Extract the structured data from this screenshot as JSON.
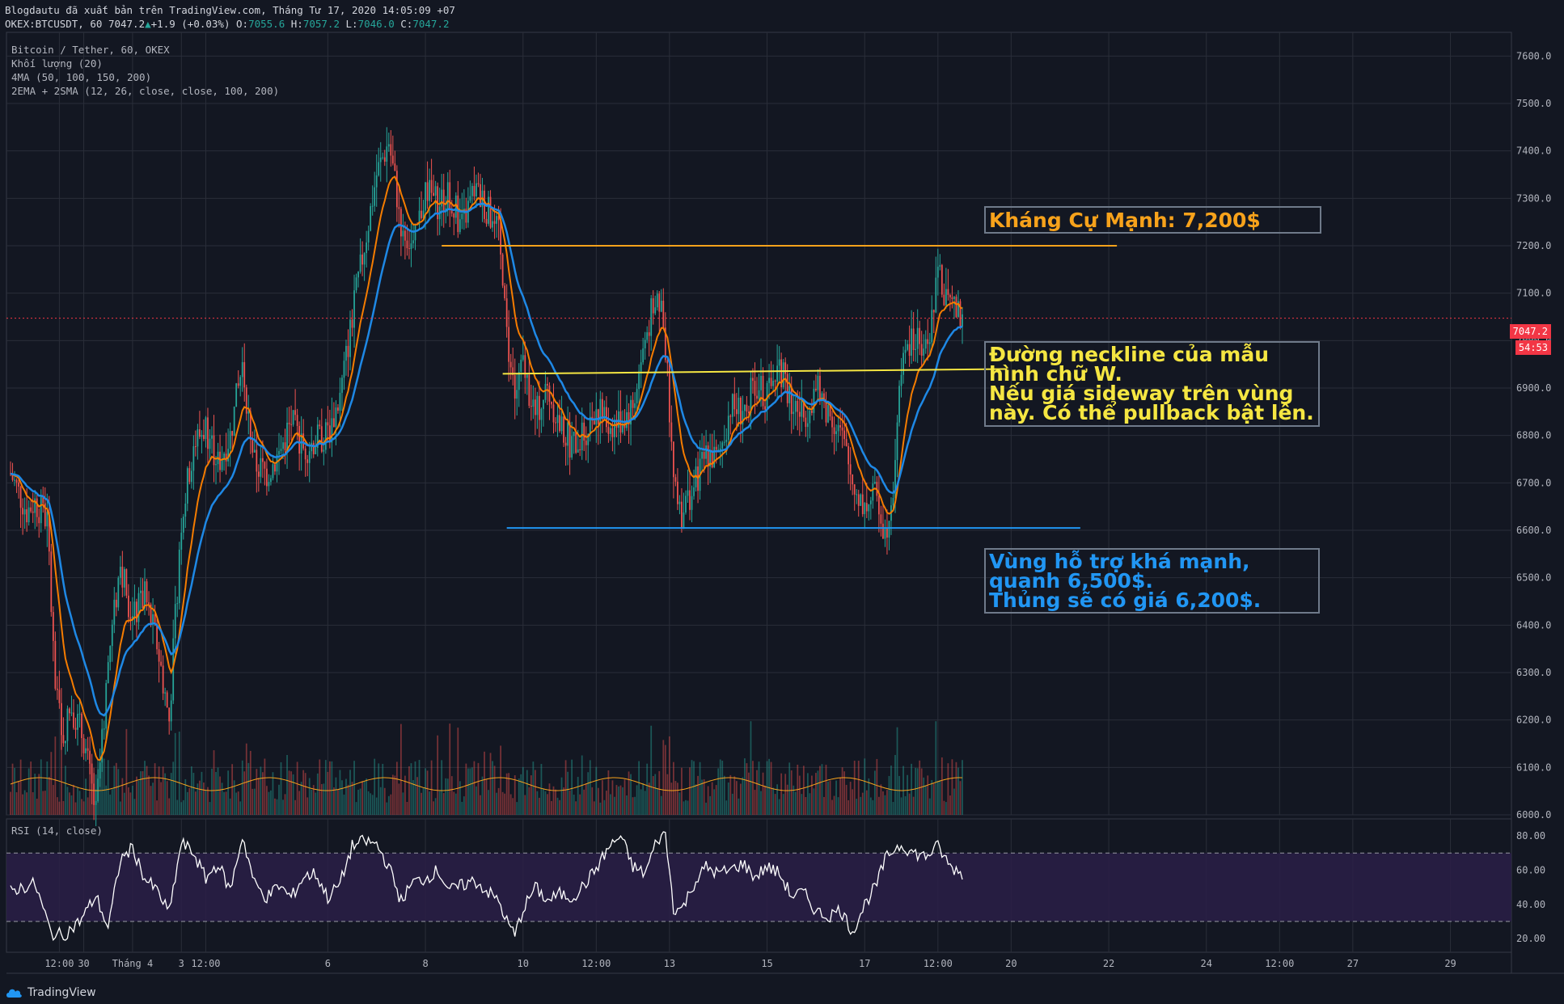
{
  "header": {
    "line1": "Blogdautu đã xuất bản trên TradingView.com, Tháng Tư 17, 2020 14:05:09 +07",
    "symbol": "OKEX:BTCUSDT, 60",
    "last": "7047.2",
    "arrow": "▲",
    "change": "+1.9 (+0.03%)",
    "o_label": "O:",
    "o": "7055.6",
    "h_label": "H:",
    "h": "7057.2",
    "l_label": "L:",
    "l": "7046.0",
    "c_label": "C:",
    "c": "7047.2"
  },
  "indicators": {
    "pair": "Bitcoin / Tether, 60, OKEX",
    "volume": "Khối lượng (20)",
    "ma": "4MA (50, 100, 150, 200)",
    "ema": "2EMA + 2SMA (12, 26, close, close, 100, 200)",
    "rsi": "RSI (14, close)"
  },
  "annotations": {
    "resistance": [
      "Kháng Cự Mạnh: 7,200$"
    ],
    "neckline": [
      "Đường neckline của mẫu",
      "hình chữ W.",
      "Nếu giá sideway trên vùng",
      "này. Có thể pullback bật lên."
    ],
    "support": [
      "Vùng hỗ trợ khá mạnh,",
      "quanh 6,500$.",
      "Thủng sẽ có giá 6,200$."
    ]
  },
  "price_tags": {
    "last": "7047.2",
    "countdown": "54:53"
  },
  "footer": {
    "brand": "TradingView"
  },
  "colors": {
    "background": "#131722",
    "grid": "#2a2e39",
    "up": "#26a69a",
    "down": "#ef5350",
    "ema_fast": "#f57c00",
    "ema_slow": "#1e88e5",
    "rsi_line": "#ffffff",
    "rsi_band": "#2a1f47",
    "resistance": "#f7a21b",
    "neckline": "#f5e642",
    "support": "#2196f3",
    "price_line": "#f23645"
  },
  "chart_data": {
    "type": "candlestick",
    "timeframe": "60",
    "price_axis": {
      "ticks": [
        "6000.0",
        "6100.0",
        "6200.0",
        "6300.0",
        "6400.0",
        "6500.0",
        "6600.0",
        "6700.0",
        "6800.0",
        "6900.0",
        "7000.0",
        "7100.0",
        "7200.0",
        "7300.0",
        "7400.0",
        "7500.0",
        "7600.0"
      ],
      "ylim": [
        6000,
        7650
      ]
    },
    "time_axis": {
      "ticks": [
        "12:00",
        "30",
        "Tháng 4",
        "3",
        "12:00",
        "6",
        "8",
        "10",
        "12:00",
        "13",
        "15",
        "17",
        "12:00",
        "20",
        "22",
        "24",
        "12:00",
        "27",
        "29"
      ],
      "tick_hours": [
        -60,
        -48,
        -24,
        0,
        12,
        72,
        120,
        168,
        204,
        240,
        288,
        336,
        372,
        408,
        456,
        504,
        540,
        576,
        624
      ]
    },
    "price_path": [
      [
        -84,
        6720
      ],
      [
        -76,
        6640
      ],
      [
        -72,
        6660
      ],
      [
        -66,
        6620
      ],
      [
        -62,
        6260
      ],
      [
        -58,
        6170
      ],
      [
        -54,
        6230
      ],
      [
        -48,
        6160
      ],
      [
        -42,
        6000
      ],
      [
        -36,
        6320
      ],
      [
        -30,
        6530
      ],
      [
        -24,
        6410
      ],
      [
        -18,
        6460
      ],
      [
        -12,
        6360
      ],
      [
        -6,
        6200
      ],
      [
        0,
        6620
      ],
      [
        6,
        6780
      ],
      [
        12,
        6820
      ],
      [
        18,
        6740
      ],
      [
        24,
        6800
      ],
      [
        30,
        6950
      ],
      [
        36,
        6740
      ],
      [
        42,
        6720
      ],
      [
        48,
        6760
      ],
      [
        54,
        6830
      ],
      [
        60,
        6770
      ],
      [
        66,
        6790
      ],
      [
        72,
        6800
      ],
      [
        78,
        6880
      ],
      [
        84,
        7050
      ],
      [
        90,
        7200
      ],
      [
        96,
        7350
      ],
      [
        102,
        7420
      ],
      [
        108,
        7250
      ],
      [
        114,
        7190
      ],
      [
        120,
        7320
      ],
      [
        126,
        7290
      ],
      [
        132,
        7310
      ],
      [
        138,
        7240
      ],
      [
        144,
        7320
      ],
      [
        150,
        7280
      ],
      [
        156,
        7220
      ],
      [
        160,
        7010
      ],
      [
        164,
        6880
      ],
      [
        168,
        6950
      ],
      [
        174,
        6840
      ],
      [
        180,
        6900
      ],
      [
        186,
        6820
      ],
      [
        192,
        6780
      ],
      [
        198,
        6800
      ],
      [
        204,
        6860
      ],
      [
        210,
        6820
      ],
      [
        216,
        6830
      ],
      [
        222,
        6860
      ],
      [
        228,
        7000
      ],
      [
        234,
        7110
      ],
      [
        238,
        6990
      ],
      [
        242,
        6720
      ],
      [
        246,
        6640
      ],
      [
        252,
        6690
      ],
      [
        258,
        6760
      ],
      [
        264,
        6750
      ],
      [
        270,
        6860
      ],
      [
        276,
        6850
      ],
      [
        282,
        6910
      ],
      [
        288,
        6880
      ],
      [
        294,
        6950
      ],
      [
        300,
        6870
      ],
      [
        306,
        6840
      ],
      [
        312,
        6900
      ],
      [
        318,
        6850
      ],
      [
        324,
        6810
      ],
      [
        330,
        6700
      ],
      [
        336,
        6650
      ],
      [
        342,
        6680
      ],
      [
        346,
        6590
      ],
      [
        350,
        6700
      ],
      [
        354,
        6950
      ],
      [
        360,
        7000
      ],
      [
        366,
        6980
      ],
      [
        370,
        7070
      ],
      [
        372,
        7150
      ],
      [
        376,
        7080
      ],
      [
        380,
        7060
      ],
      [
        384,
        7047
      ]
    ],
    "last_price": 7047.2,
    "levels": [
      {
        "name": "resistance",
        "price": 7200,
        "from_hour": 128,
        "to_hour": 460
      },
      {
        "name": "neckline",
        "price": 6930,
        "from_hour": 158,
        "to_hour": 406
      },
      {
        "name": "support",
        "price": 6605,
        "from_hour": 160,
        "to_hour": 442
      }
    ],
    "rsi": {
      "ticks": [
        "20.00",
        "40.00",
        "60.00",
        "80.00"
      ],
      "ylim": [
        12,
        90
      ],
      "upper": 70,
      "lower": 30,
      "path": [
        [
          -84,
          48
        ],
        [
          -72,
          52
        ],
        [
          -64,
          23
        ],
        [
          -58,
          22
        ],
        [
          -50,
          30
        ],
        [
          -42,
          45
        ],
        [
          -36,
          26
        ],
        [
          -30,
          66
        ],
        [
          -24,
          73
        ],
        [
          -18,
          55
        ],
        [
          -12,
          48
        ],
        [
          -6,
          35
        ],
        [
          0,
          76
        ],
        [
          6,
          70
        ],
        [
          12,
          55
        ],
        [
          18,
          64
        ],
        [
          24,
          48
        ],
        [
          30,
          80
        ],
        [
          36,
          52
        ],
        [
          42,
          44
        ],
        [
          48,
          51
        ],
        [
          54,
          44
        ],
        [
          60,
          56
        ],
        [
          66,
          58
        ],
        [
          72,
          44
        ],
        [
          78,
          52
        ],
        [
          84,
          74
        ],
        [
          90,
          77
        ],
        [
          96,
          75
        ],
        [
          102,
          62
        ],
        [
          108,
          42
        ],
        [
          114,
          53
        ],
        [
          120,
          55
        ],
        [
          126,
          60
        ],
        [
          132,
          48
        ],
        [
          138,
          51
        ],
        [
          144,
          54
        ],
        [
          150,
          48
        ],
        [
          156,
          42
        ],
        [
          160,
          30
        ],
        [
          164,
          22
        ],
        [
          168,
          37
        ],
        [
          174,
          50
        ],
        [
          180,
          42
        ],
        [
          186,
          46
        ],
        [
          192,
          44
        ],
        [
          198,
          51
        ],
        [
          204,
          61
        ],
        [
          210,
          73
        ],
        [
          216,
          80
        ],
        [
          222,
          62
        ],
        [
          228,
          58
        ],
        [
          234,
          78
        ],
        [
          238,
          81
        ],
        [
          242,
          38
        ],
        [
          246,
          37
        ],
        [
          252,
          52
        ],
        [
          258,
          62
        ],
        [
          264,
          58
        ],
        [
          270,
          60
        ],
        [
          276,
          64
        ],
        [
          282,
          56
        ],
        [
          288,
          62
        ],
        [
          294,
          58
        ],
        [
          300,
          45
        ],
        [
          306,
          47
        ],
        [
          312,
          36
        ],
        [
          318,
          33
        ],
        [
          324,
          37
        ],
        [
          330,
          24
        ],
        [
          336,
          40
        ],
        [
          342,
          52
        ],
        [
          346,
          66
        ],
        [
          350,
          72
        ],
        [
          354,
          75
        ],
        [
          360,
          70
        ],
        [
          366,
          68
        ],
        [
          372,
          74
        ],
        [
          378,
          62
        ],
        [
          384,
          58
        ]
      ]
    }
  }
}
